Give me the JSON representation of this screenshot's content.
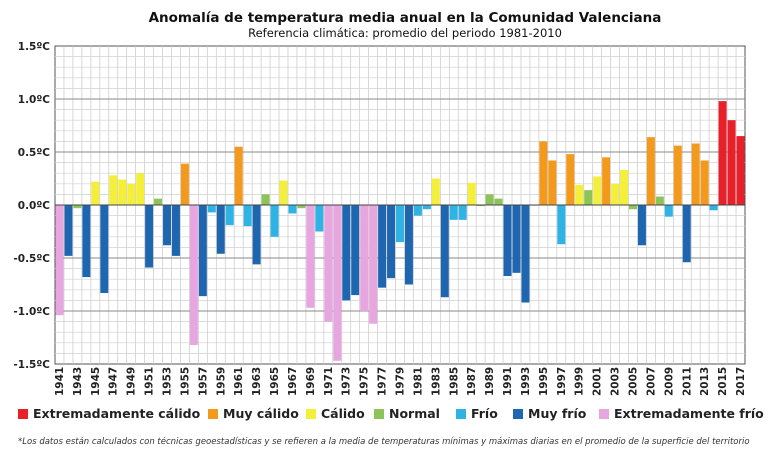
{
  "chart_data": {
    "type": "bar",
    "title": "Anomalía de temperatura media anual en la Comunidad Valenciana",
    "subtitle": "Referencia climática: promedio del periodo 1981-2010",
    "ylim": [
      -1.5,
      1.5
    ],
    "yticks": [
      "1.5ºC",
      "1.0ºC",
      "0.5ºC",
      "0.0ºC",
      "-0.5ºC",
      "-1.0ºC",
      "-1.5ºC"
    ],
    "ytick_values": [
      1.5,
      1.0,
      0.5,
      0.0,
      -0.5,
      -1.0,
      -1.5
    ],
    "xtick_labels": [
      "1941",
      "1943",
      "1945",
      "1947",
      "1949",
      "1951",
      "1953",
      "1955",
      "1957",
      "1959",
      "1961",
      "1963",
      "1965",
      "1967",
      "1969",
      "1971",
      "1973",
      "1975",
      "1977",
      "1979",
      "1981",
      "1983",
      "1985",
      "1987",
      "1989",
      "1991",
      "1993",
      "1995",
      "1997",
      "1999",
      "2001",
      "2003",
      "2005",
      "2007",
      "2009",
      "2011",
      "2013",
      "2015",
      "2017"
    ],
    "categories": [
      "1941",
      "1942",
      "1943",
      "1944",
      "1945",
      "1946",
      "1947",
      "1948",
      "1949",
      "1950",
      "1951",
      "1952",
      "1953",
      "1954",
      "1955",
      "1956",
      "1957",
      "1958",
      "1959",
      "1960",
      "1961",
      "1962",
      "1963",
      "1964",
      "1965",
      "1966",
      "1967",
      "1968",
      "1969",
      "1970",
      "1971",
      "1972",
      "1973",
      "1974",
      "1975",
      "1976",
      "1977",
      "1978",
      "1979",
      "1980",
      "1981",
      "1982",
      "1983",
      "1984",
      "1985",
      "1986",
      "1987",
      "1988",
      "1989",
      "1990",
      "1991",
      "1992",
      "1993",
      "1994",
      "1995",
      "1996",
      "1997",
      "1998",
      "1999",
      "2000",
      "2001",
      "2002",
      "2003",
      "2004",
      "2005",
      "2006",
      "2007",
      "2008",
      "2009",
      "2010",
      "2011",
      "2012",
      "2013",
      "2014",
      "2015",
      "2016",
      "2017"
    ],
    "values": [
      -1.04,
      -0.48,
      -0.03,
      -0.68,
      0.22,
      -0.83,
      0.28,
      0.24,
      0.2,
      0.3,
      -0.59,
      0.06,
      -0.38,
      -0.48,
      0.39,
      -1.32,
      -0.86,
      -0.07,
      -0.46,
      -0.19,
      0.55,
      -0.2,
      -0.56,
      0.1,
      -0.3,
      0.23,
      -0.08,
      -0.03,
      -0.97,
      -0.25,
      -1.1,
      -1.47,
      -0.9,
      -0.85,
      -1.0,
      -1.12,
      -0.78,
      -0.69,
      -0.35,
      -0.75,
      -0.1,
      -0.04,
      0.25,
      -0.87,
      -0.14,
      -0.14,
      0.21,
      -0.01,
      0.1,
      0.06,
      -0.67,
      -0.64,
      -0.92,
      0.0,
      0.6,
      0.42,
      -0.37,
      0.48,
      0.19,
      0.14,
      0.27,
      0.45,
      0.2,
      0.33,
      -0.04,
      -0.38,
      0.64,
      0.08,
      -0.11,
      0.56,
      -0.54,
      0.58,
      0.42,
      -0.05,
      0.98,
      0.8,
      0.65
    ],
    "classes": [
      "ef",
      "mf",
      "n",
      "mf",
      "c",
      "mf",
      "c",
      "c",
      "c",
      "c",
      "mf",
      "n",
      "mf",
      "mf",
      "mc",
      "ef",
      "mf",
      "f",
      "mf",
      "f",
      "mc",
      "f",
      "mf",
      "n",
      "f",
      "c",
      "f",
      "n",
      "ef",
      "f",
      "ef",
      "ef",
      "mf",
      "mf",
      "ef",
      "ef",
      "mf",
      "mf",
      "f",
      "mf",
      "f",
      "f",
      "c",
      "mf",
      "f",
      "f",
      "c",
      "n",
      "n",
      "n",
      "mf",
      "mf",
      "mf",
      "n",
      "mc",
      "mc",
      "f",
      "mc",
      "c",
      "n",
      "c",
      "mc",
      "c",
      "c",
      "n",
      "mf",
      "mc",
      "n",
      "f",
      "mc",
      "mf",
      "mc",
      "mc",
      "f",
      "ec",
      "ec",
      "ec"
    ],
    "legend": [
      {
        "key": "ec",
        "label": "Extremadamente cálido",
        "color": "#e8202a"
      },
      {
        "key": "mc",
        "label": "Muy cálido",
        "color": "#f39a1d"
      },
      {
        "key": "c",
        "label": "Cálido",
        "color": "#f4f03a"
      },
      {
        "key": "n",
        "label": "Normal",
        "color": "#8ec35a"
      },
      {
        "key": "f",
        "label": "Frío",
        "color": "#2fb2e4"
      },
      {
        "key": "mf",
        "label": "Muy frío",
        "color": "#1f66b0"
      },
      {
        "key": "ef",
        "label": "Extremadamente frío",
        "color": "#e8a6e0"
      }
    ],
    "legend_placement": "bottom",
    "grid": true,
    "footnote": "*Los datos están calculados con técnicas geoestadísticas y se refieren a la media de temperaturas mínimas y máximas diarias en el promedio de la superficie del territorio"
  }
}
